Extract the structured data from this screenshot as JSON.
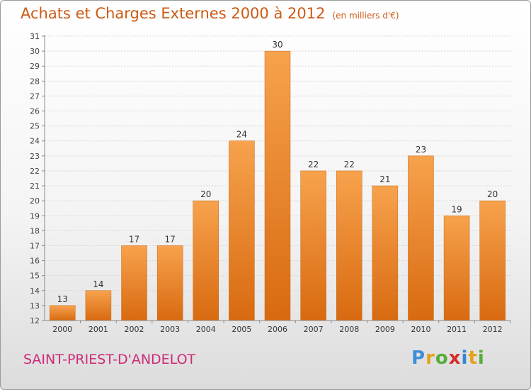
{
  "header": {
    "title": "Achats et Charges Externes 2000 à 2012",
    "unit": "(en milliers d'€)"
  },
  "footer": {
    "place": "SAINT-PRIEST-D'ANDELOT",
    "logo_letters": [
      "P",
      "r",
      "o",
      "x",
      "i",
      "t",
      "i"
    ],
    "logo_colors": [
      "#3d8ed8",
      "#e6a11a",
      "#57ad3a",
      "#d62c2c",
      "#2f86d1",
      "#e6a11a",
      "#57ad3a"
    ]
  },
  "colors": {
    "title": "#cc5a14",
    "place": "#cc2a78",
    "bar_top": "#f7a24d",
    "bar_bottom": "#d86a10"
  },
  "chart_data": {
    "type": "bar",
    "title": "Achats et Charges Externes 2000 à 2012",
    "subtitle": "(en milliers d'€)",
    "categories": [
      "2000",
      "2001",
      "2002",
      "2003",
      "2004",
      "2005",
      "2006",
      "2007",
      "2008",
      "2009",
      "2010",
      "2011",
      "2012"
    ],
    "values": [
      13,
      14,
      17,
      17,
      20,
      24,
      30,
      22,
      22,
      21,
      23,
      19,
      20
    ],
    "ylim": [
      12,
      31
    ],
    "yticks": [
      12,
      13,
      14,
      15,
      16,
      17,
      18,
      19,
      20,
      21,
      22,
      23,
      24,
      25,
      26,
      27,
      28,
      29,
      30,
      31
    ],
    "grid": true,
    "data_labels": true
  }
}
